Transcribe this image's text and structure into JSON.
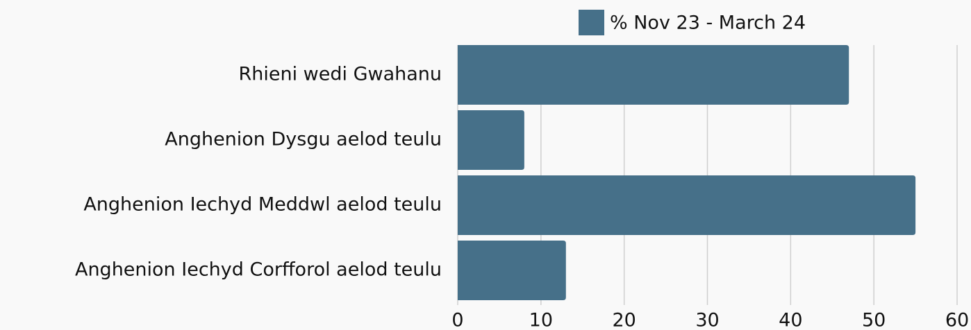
{
  "chart_data": {
    "type": "bar",
    "orientation": "horizontal",
    "categories": [
      "Rhieni wedi Gwahanu",
      "Anghenion Dysgu aelod teulu",
      "Anghenion Iechyd Meddwl aelod teulu",
      "Anghenion Iechyd Corfforol aelod teulu"
    ],
    "series": [
      {
        "name": "% Nov 23 - March 24",
        "color": "#467089",
        "values": [
          47,
          8,
          55,
          13
        ]
      }
    ],
    "xlim": [
      0,
      60
    ],
    "xticks": [
      0,
      10,
      20,
      30,
      40,
      50,
      60
    ],
    "grid": true,
    "legend": "top"
  }
}
